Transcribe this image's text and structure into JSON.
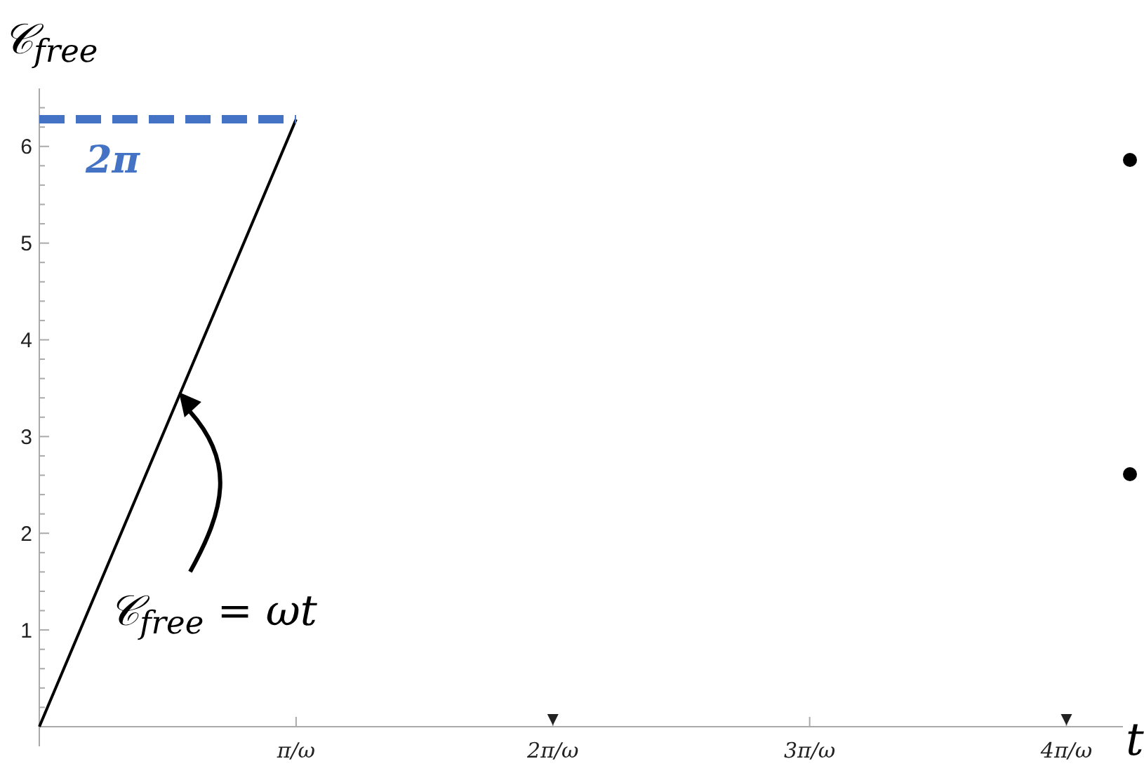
{
  "chart_data": {
    "type": "line",
    "ylabel": "𝒞$_{free}$",
    "xlabel": "t",
    "x": [
      0,
      1
    ],
    "series": [
      {
        "name": "𝒞$_{free}$ = ωt",
        "color": "#000000",
        "values": [
          0,
          6.28
        ],
        "line_style": "solid"
      },
      {
        "name": "2π",
        "color": "#4472c4",
        "values": [
          6.28,
          6.28
        ],
        "line_style": "dashed"
      }
    ],
    "xlim": [
      0,
      4.22
    ],
    "xticks": [
      {
        "value": 1,
        "label": "π/ω"
      },
      {
        "value": 2,
        "label": "2π/ω"
      },
      {
        "value": 3,
        "label": "3π/ω"
      },
      {
        "value": 4,
        "label": "4π/ω"
      }
    ],
    "ylim": [
      0,
      6.6
    ],
    "yticks": [
      {
        "value": 0,
        "label": null
      },
      {
        "value": 0.2,
        "label": null
      },
      {
        "value": 0.4,
        "label": null
      },
      {
        "value": 0.6,
        "label": null
      },
      {
        "value": 0.8,
        "label": null
      },
      1,
      {
        "value": 1.2,
        "label": null
      },
      {
        "value": 1.4,
        "label": null
      },
      {
        "value": 1.6,
        "label": null
      },
      {
        "value": 1.8,
        "label": null
      },
      2,
      {
        "value": 2.2,
        "label": null
      },
      {
        "value": 2.4,
        "label": null
      },
      {
        "value": 2.6,
        "label": null
      },
      {
        "value": 2.8,
        "label": null
      },
      3,
      {
        "value": 3.2,
        "label": null
      },
      {
        "value": 3.4,
        "label": null
      },
      {
        "value": 3.6,
        "label": null
      },
      {
        "value": 3.8,
        "label": null
      },
      4,
      {
        "value": 4.2,
        "label": null
      },
      {
        "value": 4.4,
        "label": null
      },
      {
        "value": 4.6,
        "label": null
      },
      {
        "value": 4.8,
        "label": null
      },
      5,
      {
        "value": 5.2,
        "label": null
      },
      {
        "value": 5.4,
        "label": null
      },
      {
        "value": 5.6,
        "label": null
      },
      {
        "value": 5.8,
        "label": null
      },
      6,
      {
        "value": 6.2,
        "label": null
      },
      {
        "value": 6.4,
        "label": null
      }
    ],
    "grid": false,
    "marker": "none"
  }
}
